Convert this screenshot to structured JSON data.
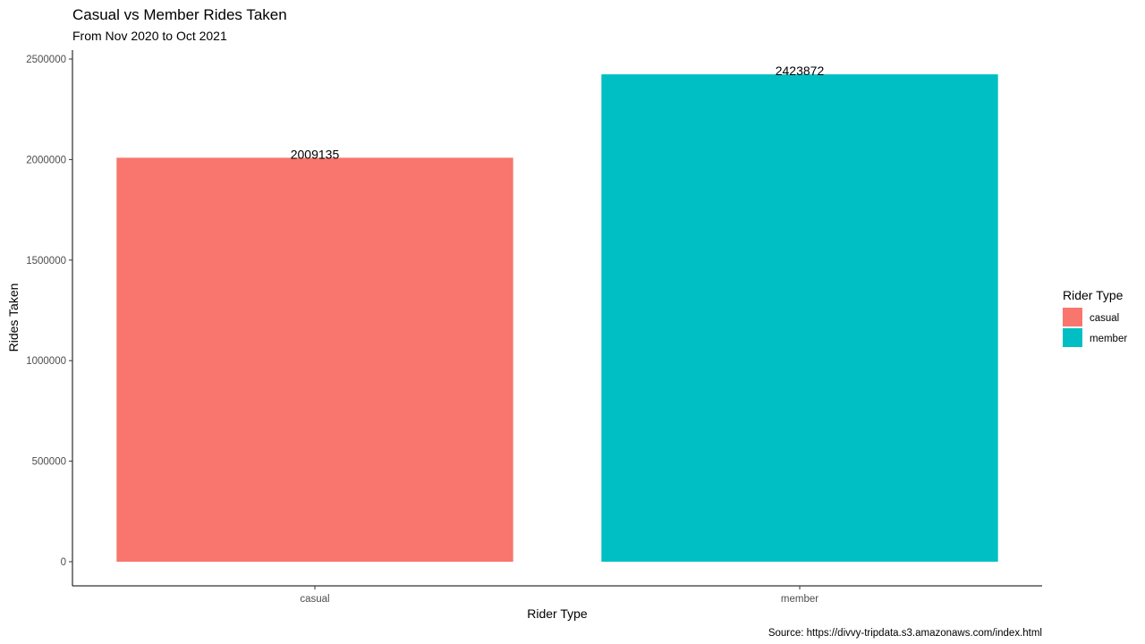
{
  "chart_data": {
    "type": "bar",
    "title": "Casual vs Member Rides Taken",
    "subtitle": "From Nov 2020 to Oct 2021",
    "xlabel": "Rider Type",
    "ylabel": "Rides Taken",
    "caption": "Source: https://divvy-tripdata.s3.amazonaws.com/index.html",
    "categories": [
      "casual",
      "member"
    ],
    "values": [
      2009135,
      2423872
    ],
    "data_labels": [
      "2009135",
      "2423872"
    ],
    "colors": [
      "#F8766D",
      "#00BFC4"
    ],
    "ylim": [
      0,
      2500000
    ],
    "y_ticks": [
      0,
      500000,
      1000000,
      1500000,
      2000000,
      2500000
    ],
    "y_tick_labels": [
      "0",
      "500000",
      "1000000",
      "1500000",
      "2000000",
      "2500000"
    ],
    "grid": false,
    "legend": {
      "title": "Rider Type",
      "placement": "right",
      "entries": [
        {
          "label": "casual",
          "color": "#F8766D"
        },
        {
          "label": "member",
          "color": "#00BFC4"
        }
      ]
    }
  }
}
